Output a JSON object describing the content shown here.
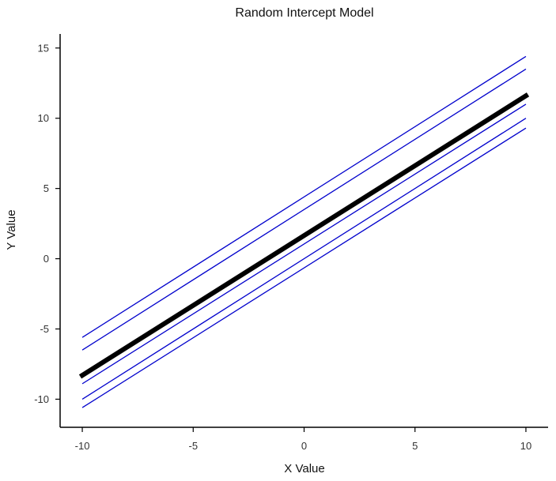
{
  "chart_data": {
    "type": "line",
    "title": "Random Intercept Model",
    "xlabel": "X Value",
    "ylabel": "Y Value",
    "xlim": [
      -11,
      11
    ],
    "ylim": [
      -12,
      16
    ],
    "x_ticks": [
      -10,
      -5,
      0,
      5,
      10
    ],
    "y_ticks": [
      -10,
      -5,
      0,
      5,
      10,
      15
    ],
    "x_tick_labels": [
      "-10",
      "-5",
      "0",
      "5",
      "10"
    ],
    "y_tick_labels": [
      "-10",
      "-5",
      "0",
      "5",
      "10",
      "15"
    ],
    "grid": false,
    "legend": "none",
    "x": [
      -10,
      10
    ],
    "fixed_effect": {
      "values": [
        -8.3,
        11.6
      ],
      "color": "#000000"
    },
    "series": [
      {
        "values": [
          -5.6,
          14.4
        ],
        "color": "#0000cc"
      },
      {
        "values": [
          -6.5,
          13.5
        ],
        "color": "#0000cc"
      },
      {
        "values": [
          -8.9,
          11.0
        ],
        "color": "#0000cc"
      },
      {
        "values": [
          -10.0,
          10.0
        ],
        "color": "#0000cc"
      },
      {
        "values": [
          -10.6,
          9.3
        ],
        "color": "#0000cc"
      }
    ]
  }
}
